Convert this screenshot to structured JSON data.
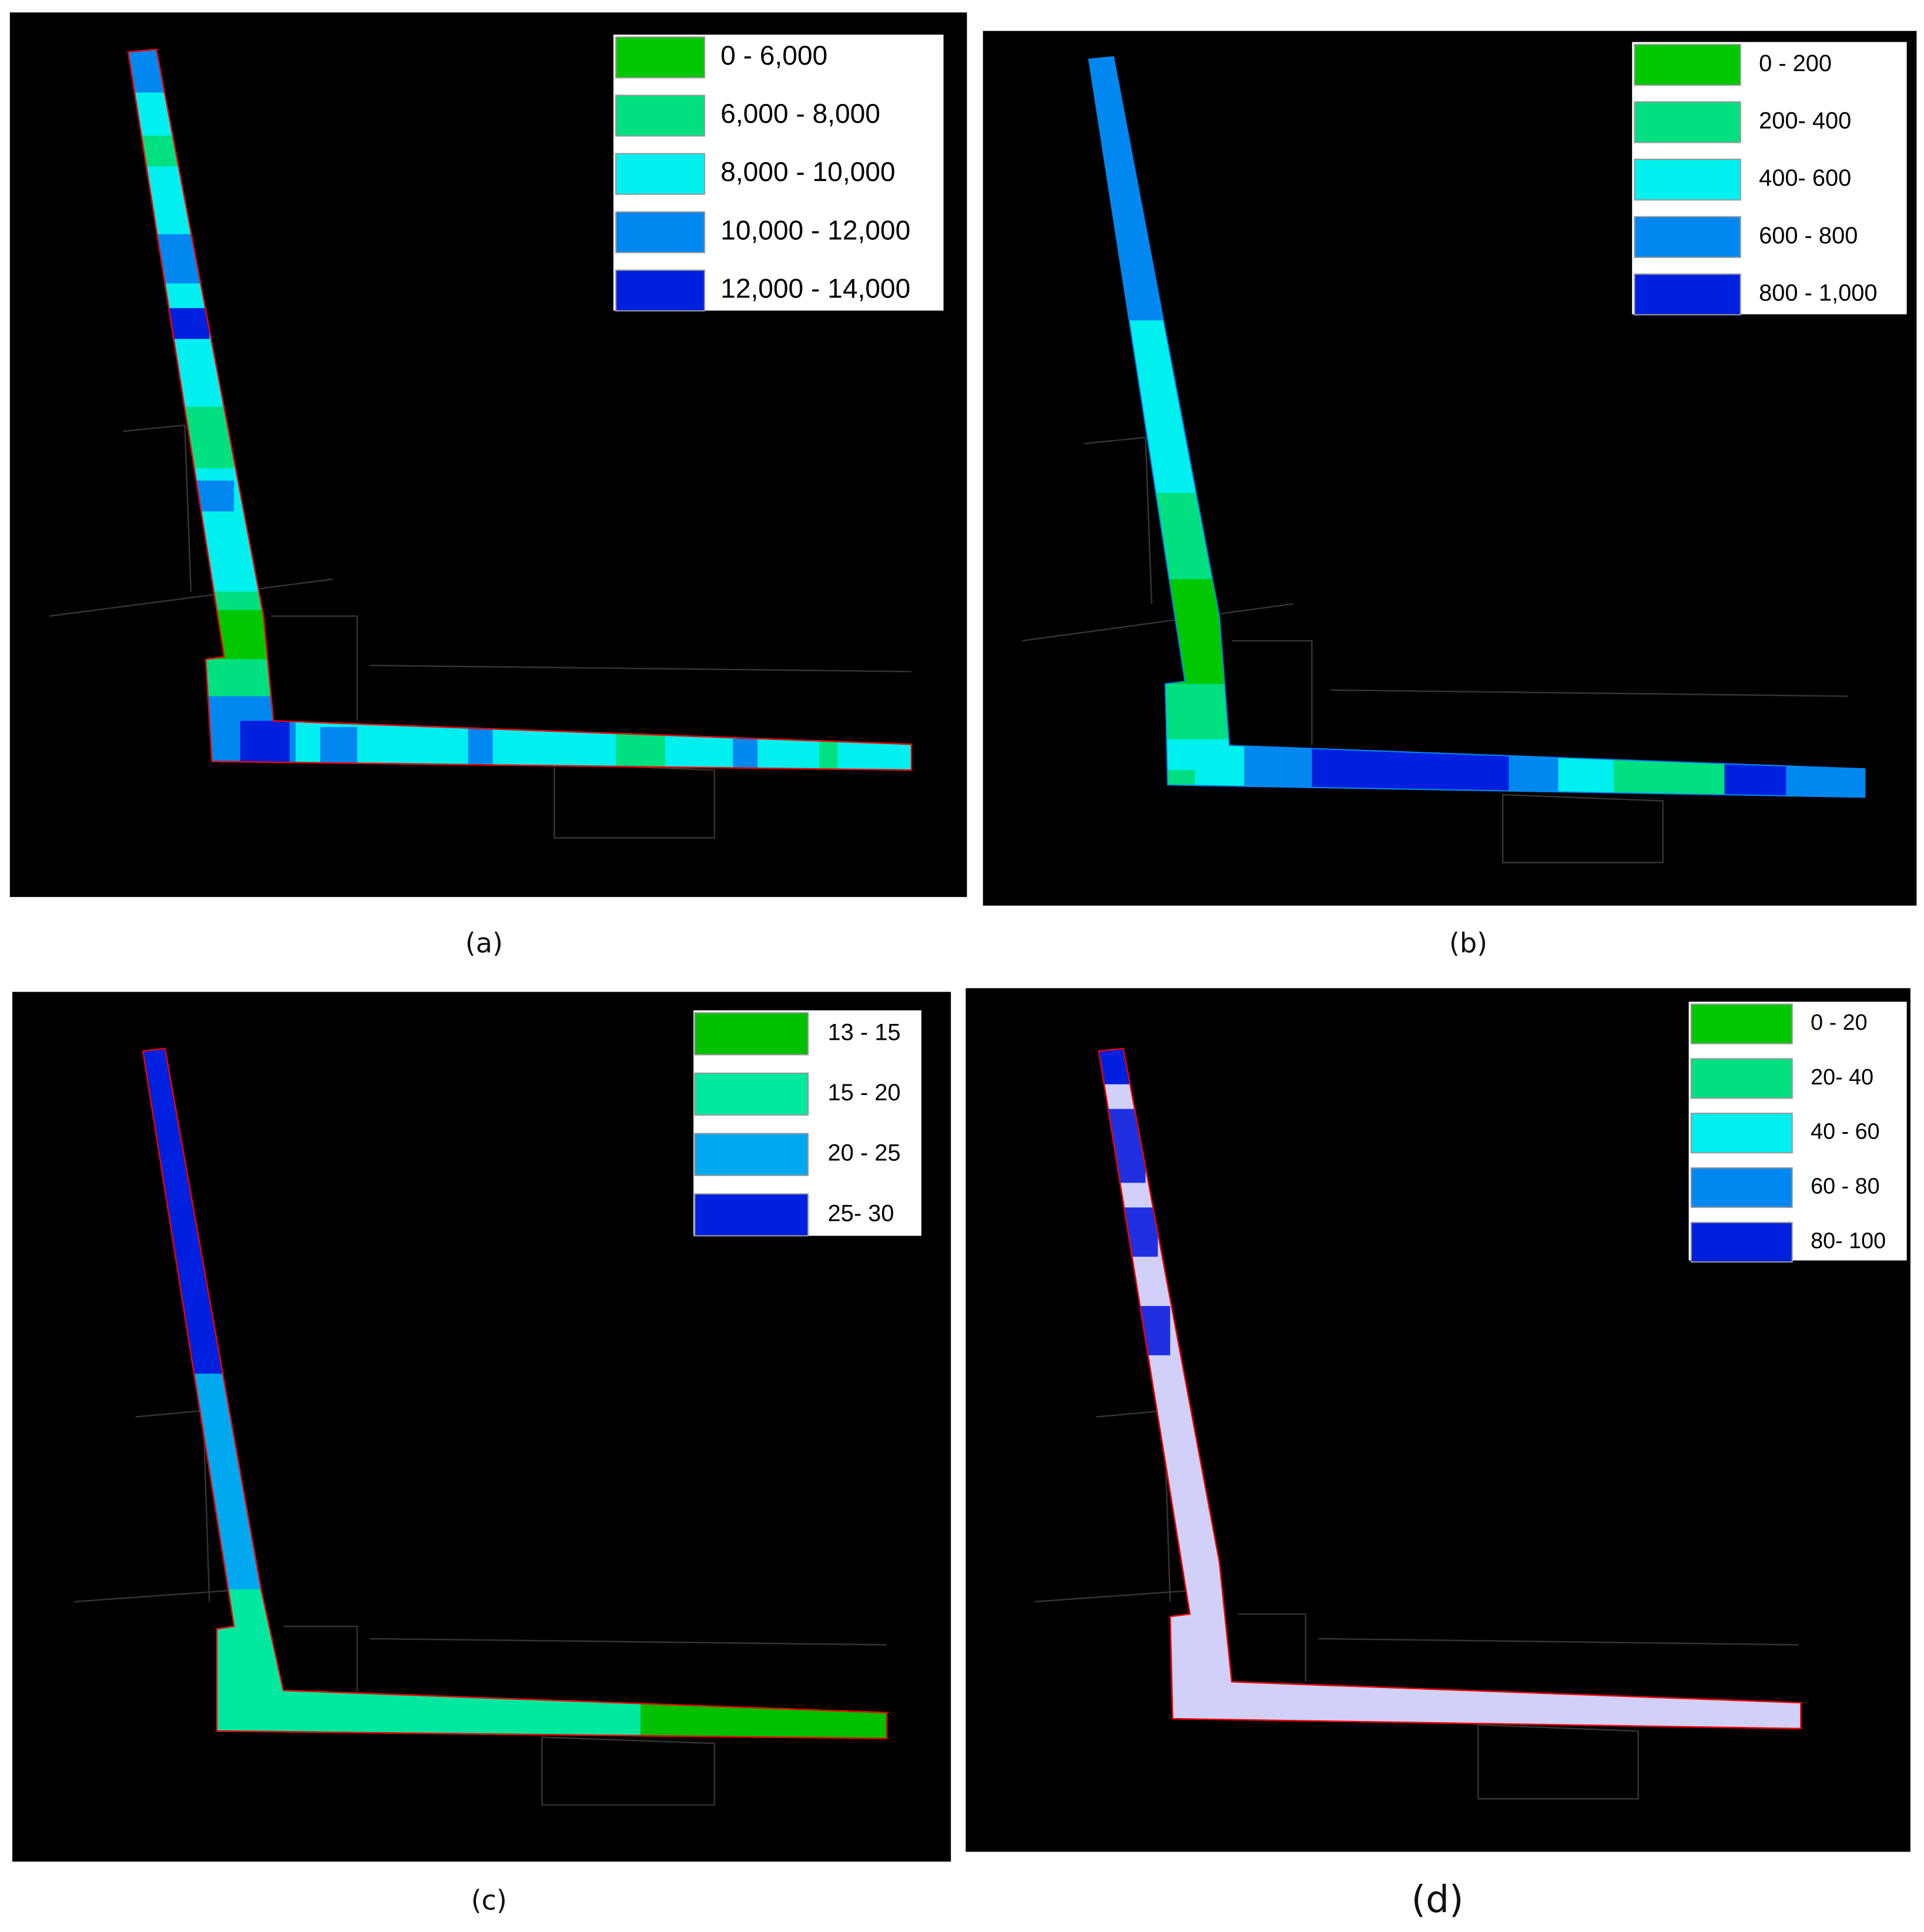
{
  "panels": [
    {
      "caption": "(a)",
      "legend": [
        {
          "label": "0 - 6,000",
          "color": "#00c800"
        },
        {
          "label": "6,000 - 8,000",
          "color": "#00e080"
        },
        {
          "label": "8,000 - 10,000",
          "color": "#00f0f0"
        },
        {
          "label": "10,000 - 12,000",
          "color": "#0088f0"
        },
        {
          "label": "12,000 - 14,000",
          "color": "#0020e0"
        }
      ]
    },
    {
      "caption": "(b)",
      "legend": [
        {
          "label": "0 - 200",
          "color": "#00c800"
        },
        {
          "label": "200- 400",
          "color": "#00e080"
        },
        {
          "label": "400- 600",
          "color": "#00f0f0"
        },
        {
          "label": "600 - 800",
          "color": "#0088f0"
        },
        {
          "label": "800 - 1,000",
          "color": "#0020e0"
        }
      ]
    },
    {
      "caption": "(c)",
      "legend": [
        {
          "label": "13 - 15",
          "color": "#00c000"
        },
        {
          "label": "15 - 20",
          "color": "#00e8a0"
        },
        {
          "label": "20 - 25",
          "color": "#00a8f0"
        },
        {
          "label": "25- 30",
          "color": "#0020e0"
        }
      ]
    },
    {
      "caption": "(d)",
      "legend": [
        {
          "label": "0 - 20",
          "color": "#00c800"
        },
        {
          "label": "20- 40",
          "color": "#00e080"
        },
        {
          "label": "40 - 60",
          "color": "#00f0f0"
        },
        {
          "label": "60 - 80",
          "color": "#0088f0"
        },
        {
          "label": "80- 100",
          "color": "#0020e0"
        }
      ]
    }
  ]
}
